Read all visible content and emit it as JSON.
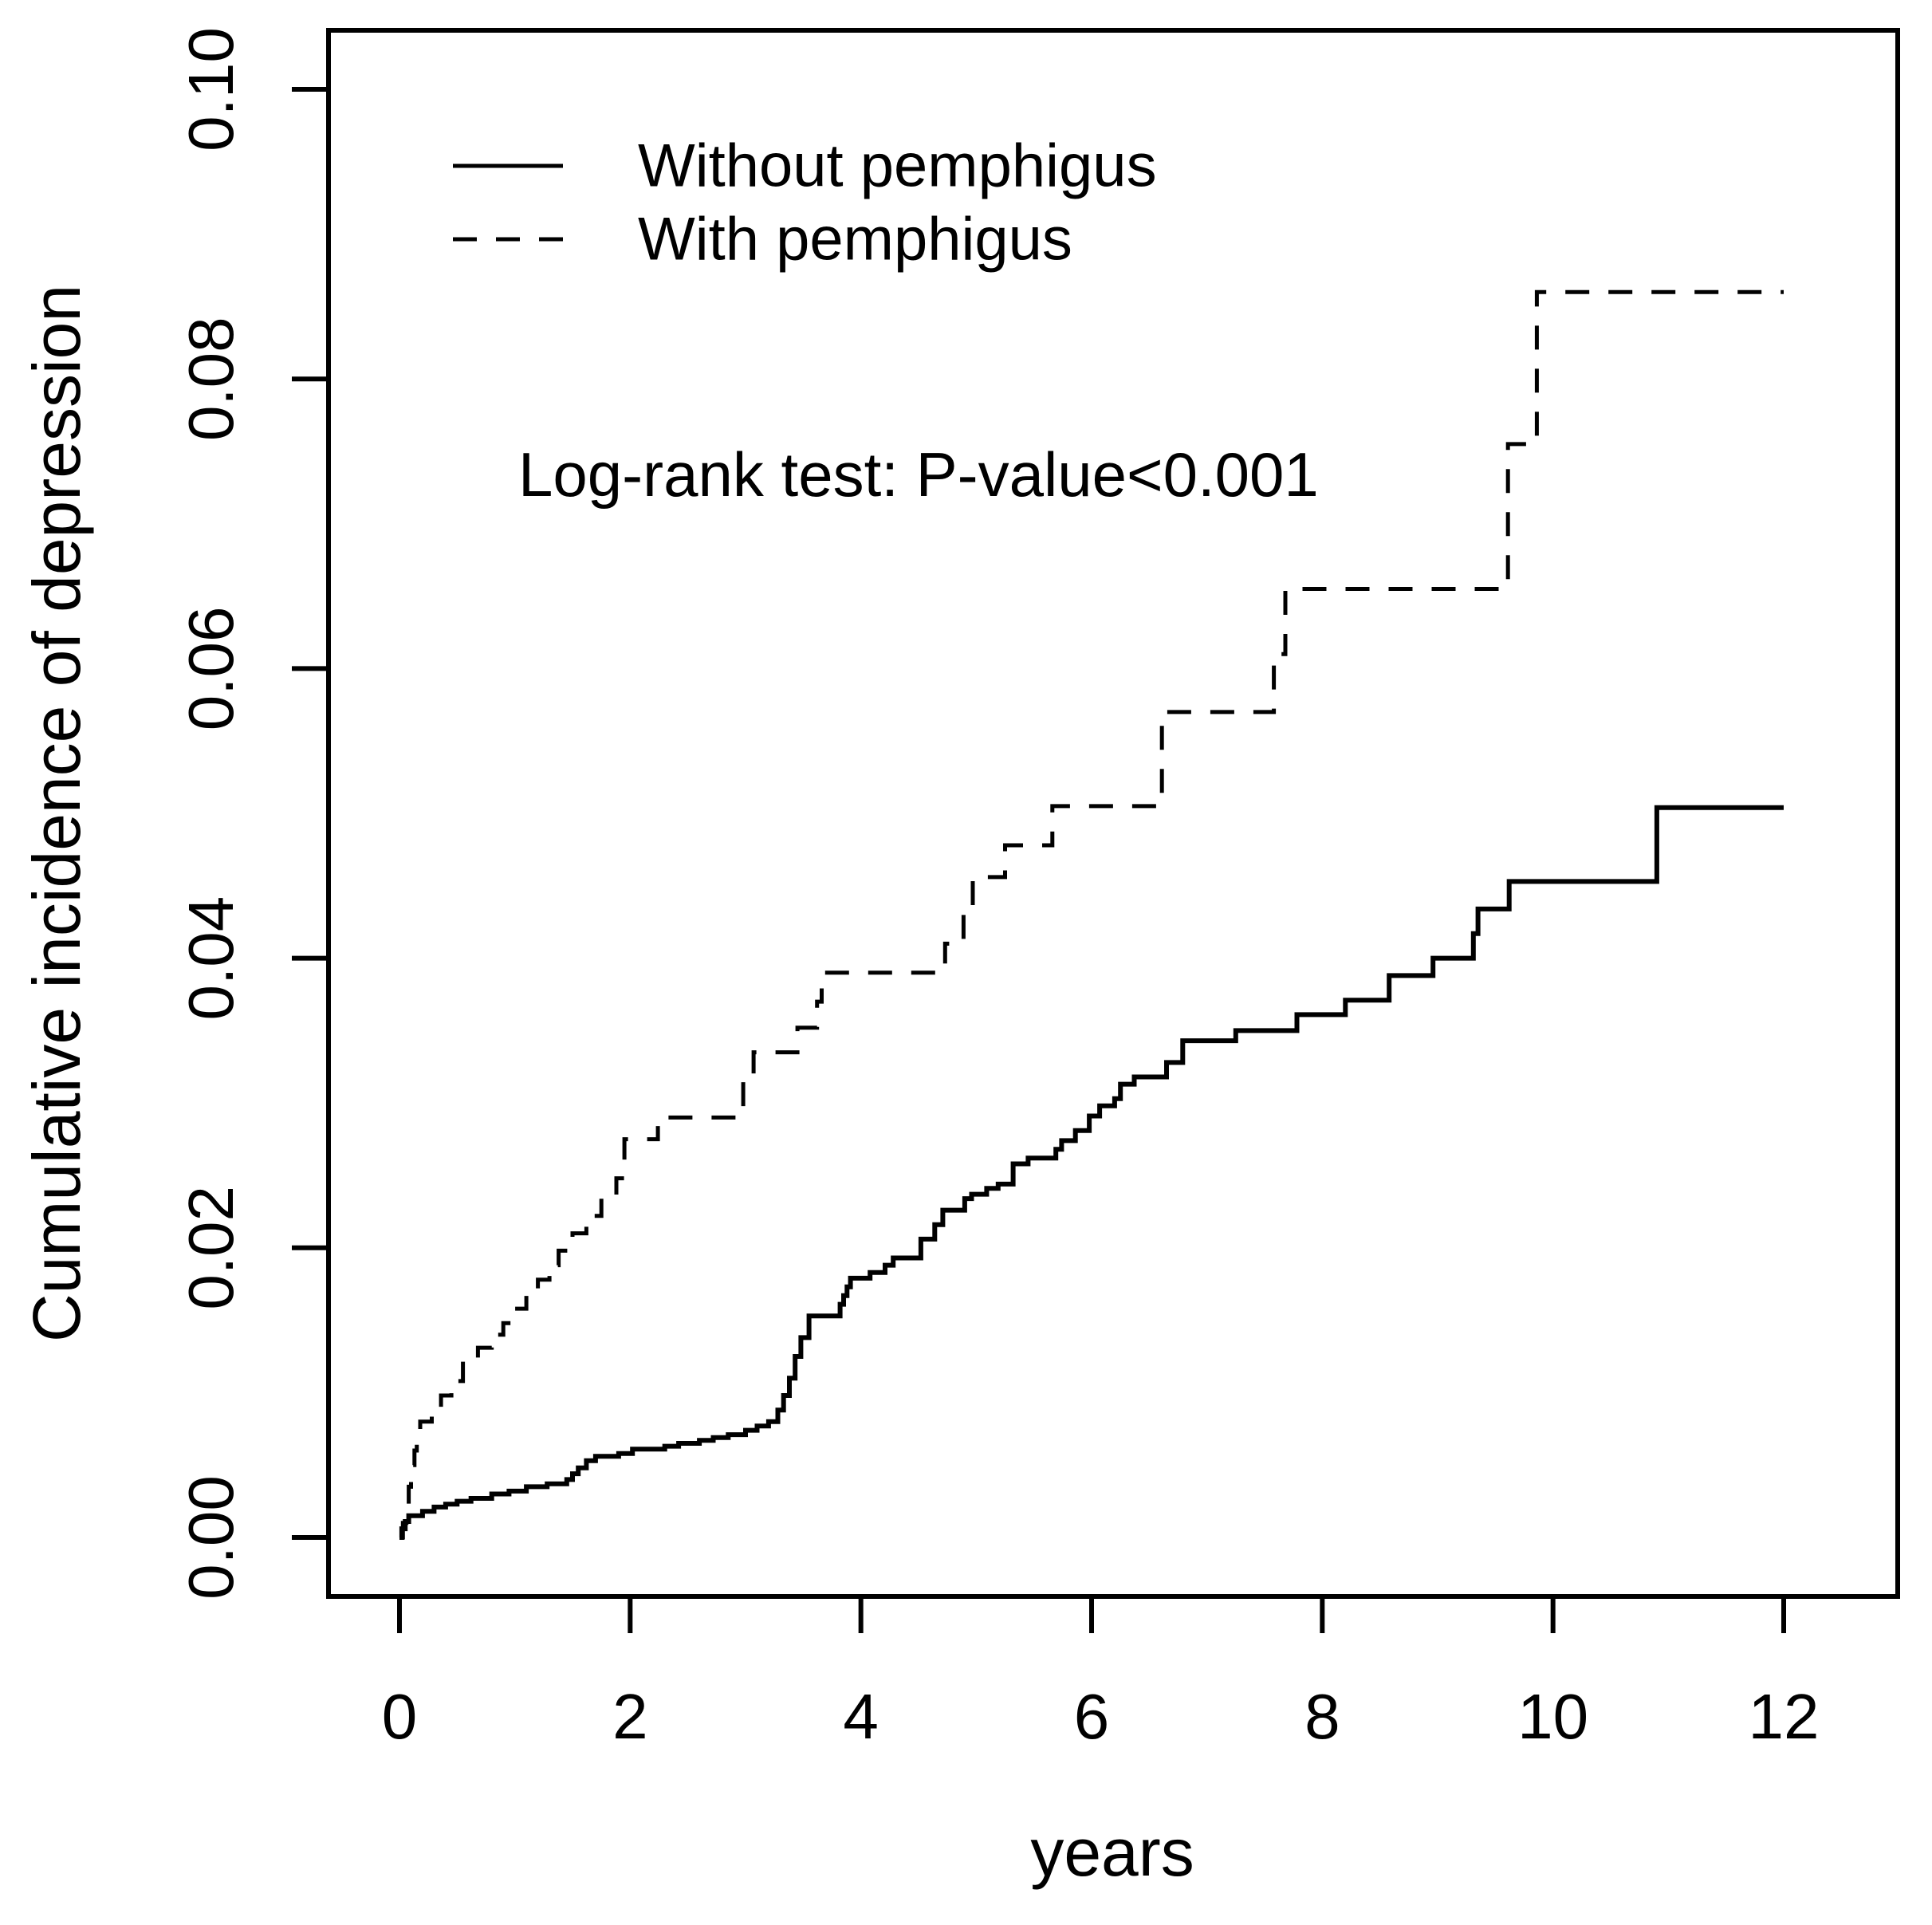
{
  "figure": {
    "background_color": "#ffffff",
    "foreground_color": "#000000"
  },
  "chart_data": {
    "type": "line",
    "subtype": "step-cumulative-incidence",
    "title": "",
    "xlabel": "years",
    "ylabel": "Cumulative incidence of depression",
    "xlim": [
      0,
      12
    ],
    "ylim": [
      0.0,
      0.1
    ],
    "xticks": [
      0,
      2,
      4,
      6,
      8,
      10,
      12
    ],
    "ytick_labels": [
      "0.00",
      "0.02",
      "0.04",
      "0.06",
      "0.08",
      "0.10"
    ],
    "ytick_values": [
      0.0,
      0.02,
      0.04,
      0.06,
      0.08,
      0.1
    ],
    "grid": false,
    "annotation": "Log-rank test: P-value<0.001",
    "legend": {
      "position": "top-left-inside",
      "entries": [
        {
          "label": "Without pemphigus",
          "line_style": "solid"
        },
        {
          "label": "With pemphigus",
          "line_style": "dashed"
        }
      ]
    },
    "series": [
      {
        "name": "Without pemphigus",
        "line_style": "solid",
        "color": "#000000",
        "points": [
          [
            0,
            0
          ],
          [
            0.02,
            0.0006
          ],
          [
            0.05,
            0.0011
          ],
          [
            0.08,
            0.0015
          ],
          [
            0.2,
            0.0018
          ],
          [
            0.3,
            0.0021
          ],
          [
            0.4,
            0.0023
          ],
          [
            0.5,
            0.0025
          ],
          [
            0.62,
            0.0027
          ],
          [
            0.8,
            0.003
          ],
          [
            0.95,
            0.0032
          ],
          [
            1.1,
            0.0035
          ],
          [
            1.28,
            0.0037
          ],
          [
            1.45,
            0.004
          ],
          [
            1.5,
            0.0044
          ],
          [
            1.55,
            0.0048
          ],
          [
            1.62,
            0.0053
          ],
          [
            1.7,
            0.0056
          ],
          [
            1.9,
            0.0058
          ],
          [
            2.02,
            0.0061
          ],
          [
            2.3,
            0.0063
          ],
          [
            2.42,
            0.0065
          ],
          [
            2.6,
            0.0067
          ],
          [
            2.72,
            0.0069
          ],
          [
            2.85,
            0.0071
          ],
          [
            3.0,
            0.0074
          ],
          [
            3.1,
            0.0077
          ],
          [
            3.2,
            0.008
          ],
          [
            3.28,
            0.0088
          ],
          [
            3.33,
            0.0098
          ],
          [
            3.38,
            0.011
          ],
          [
            3.43,
            0.0125
          ],
          [
            3.48,
            0.0138
          ],
          [
            3.55,
            0.0153
          ],
          [
            3.82,
            0.0161
          ],
          [
            3.85,
            0.0167
          ],
          [
            3.88,
            0.0173
          ],
          [
            3.91,
            0.0179
          ],
          [
            4.08,
            0.0183
          ],
          [
            4.21,
            0.0188
          ],
          [
            4.28,
            0.0193
          ],
          [
            4.52,
            0.0206
          ],
          [
            4.64,
            0.0216
          ],
          [
            4.71,
            0.0226
          ],
          [
            4.9,
            0.0234
          ],
          [
            4.96,
            0.0237
          ],
          [
            5.09,
            0.0241
          ],
          [
            5.19,
            0.0244
          ],
          [
            5.32,
            0.0258
          ],
          [
            5.45,
            0.0262
          ],
          [
            5.69,
            0.0268
          ],
          [
            5.74,
            0.0274
          ],
          [
            5.86,
            0.0281
          ],
          [
            5.98,
            0.0291
          ],
          [
            6.07,
            0.0298
          ],
          [
            6.2,
            0.0303
          ],
          [
            6.25,
            0.0313
          ],
          [
            6.37,
            0.0318
          ],
          [
            6.65,
            0.0328
          ],
          [
            6.79,
            0.0343
          ],
          [
            7.25,
            0.035
          ],
          [
            7.78,
            0.0361
          ],
          [
            8.2,
            0.0371
          ],
          [
            8.58,
            0.0388
          ],
          [
            8.96,
            0.04
          ],
          [
            9.31,
            0.0417
          ],
          [
            9.35,
            0.0434
          ],
          [
            9.62,
            0.0453
          ],
          [
            10.9,
            0.0504
          ],
          [
            12,
            0.0504
          ]
        ]
      },
      {
        "name": "With pemphigus",
        "line_style": "dashed",
        "color": "#000000",
        "points": [
          [
            0,
            0
          ],
          [
            0.03,
            0.001
          ],
          [
            0.06,
            0.0022
          ],
          [
            0.08,
            0.0035
          ],
          [
            0.1,
            0.005
          ],
          [
            0.13,
            0.006
          ],
          [
            0.15,
            0.007
          ],
          [
            0.18,
            0.008
          ],
          [
            0.28,
            0.009
          ],
          [
            0.36,
            0.0098
          ],
          [
            0.45,
            0.0108
          ],
          [
            0.55,
            0.012
          ],
          [
            0.68,
            0.0131
          ],
          [
            0.8,
            0.014
          ],
          [
            0.9,
            0.0148
          ],
          [
            1.0,
            0.0158
          ],
          [
            1.1,
            0.0168
          ],
          [
            1.2,
            0.0178
          ],
          [
            1.3,
            0.0188
          ],
          [
            1.38,
            0.0198
          ],
          [
            1.5,
            0.021
          ],
          [
            1.62,
            0.0222
          ],
          [
            1.75,
            0.0235
          ],
          [
            1.88,
            0.0248
          ],
          [
            1.95,
            0.0275
          ],
          [
            2.24,
            0.029
          ],
          [
            2.98,
            0.0318
          ],
          [
            3.07,
            0.0335
          ],
          [
            3.45,
            0.0352
          ],
          [
            3.62,
            0.037
          ],
          [
            3.66,
            0.039
          ],
          [
            4.73,
            0.041
          ],
          [
            4.89,
            0.0432
          ],
          [
            4.97,
            0.0456
          ],
          [
            5.25,
            0.0478
          ],
          [
            5.66,
            0.0505
          ],
          [
            6.61,
            0.057
          ],
          [
            7.58,
            0.061
          ],
          [
            7.68,
            0.0655
          ],
          [
            9.61,
            0.0755
          ],
          [
            9.86,
            0.086
          ],
          [
            12,
            0.086
          ]
        ]
      }
    ]
  }
}
